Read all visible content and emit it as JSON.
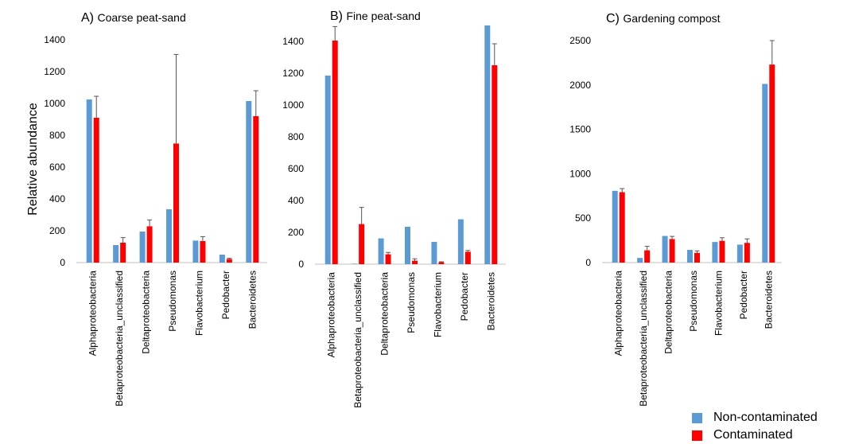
{
  "figure": {
    "ylabel": "Relative abundance",
    "legend": {
      "placement": "bottom-right",
      "items": [
        {
          "label": "Non-contaminated",
          "color": "#5b9bd5"
        },
        {
          "label": "Contaminated",
          "color": "#ff0000"
        }
      ]
    }
  },
  "chart_data": [
    {
      "type": "bar",
      "title": "Coarse peat-sand",
      "panel_label": "A)",
      "ylabel": "Relative abundance",
      "xlabel": "",
      "ylim": [
        0,
        1400
      ],
      "yticks": [
        "0",
        "200",
        "400",
        "600",
        "800",
        "1000",
        "1200",
        "1400"
      ],
      "categories": [
        "Alphaproteobacteria",
        "Betaproteobacteria_unclassified",
        "Deltaproteobacteria",
        "Pseudomonas",
        "Flavobacterium",
        "Pedobacter",
        "Bacteroidetes"
      ],
      "series": [
        {
          "name": "Non-contaminated",
          "color": "#5b9bd5",
          "values": [
            1025,
            110,
            195,
            335,
            138,
            50,
            1015
          ],
          "errors": [
            0,
            0,
            0,
            0,
            0,
            0,
            0
          ]
        },
        {
          "name": "Contaminated",
          "color": "#ff0000",
          "values": [
            910,
            125,
            228,
            748,
            135,
            22,
            920
          ],
          "errors": [
            135,
            32,
            40,
            560,
            28,
            5,
            160
          ]
        }
      ]
    },
    {
      "type": "bar",
      "title": "Fine peat-sand",
      "panel_label": "B)",
      "xlabel": "",
      "ylabel": "",
      "ylim": [
        0,
        1500
      ],
      "yticks": [
        "0",
        "200",
        "400",
        "600",
        "800",
        "1000",
        "1200",
        "1400"
      ],
      "categories": [
        "Alphaproteobacteria",
        "Betaproteobacteria_unclassified",
        "Deltaproteobacteria",
        "Pseudomonas",
        "Flavobacterium",
        "Pedobacter",
        "Bacteroidetes"
      ],
      "series": [
        {
          "name": "Non-contaminated",
          "color": "#5b9bd5",
          "values": [
            1185,
            3,
            162,
            235,
            140,
            282,
            1500
          ],
          "errors": [
            0,
            0,
            0,
            0,
            0,
            0,
            0
          ]
        },
        {
          "name": "Contaminated",
          "color": "#ff0000",
          "values": [
            1405,
            252,
            62,
            22,
            12,
            78,
            1250
          ],
          "errors": [
            88,
            105,
            12,
            12,
            3,
            8,
            135
          ]
        }
      ]
    },
    {
      "type": "bar",
      "title": "Gardening compost",
      "panel_label": "C)",
      "xlabel": "",
      "ylabel": "",
      "ylim": [
        0,
        2500
      ],
      "yticks": [
        "0",
        "500",
        "1000",
        "1500",
        "2000",
        "2500"
      ],
      "categories": [
        "Alphaproteobacteria",
        "Betaproteobacteria_unclassified",
        "Deltaproteobacteria",
        "Pseudomonas",
        "Flavobacterium",
        "Pedobacter",
        "Bacteroidetes"
      ],
      "series": [
        {
          "name": "Non-contaminated",
          "color": "#5b9bd5",
          "values": [
            808,
            52,
            300,
            143,
            232,
            202,
            2012
          ],
          "errors": [
            0,
            0,
            0,
            0,
            0,
            0,
            0
          ]
        },
        {
          "name": "Contaminated",
          "color": "#ff0000",
          "values": [
            793,
            138,
            265,
            110,
            245,
            222,
            2230
          ],
          "errors": [
            40,
            45,
            30,
            22,
            35,
            45,
            270
          ]
        }
      ]
    }
  ]
}
